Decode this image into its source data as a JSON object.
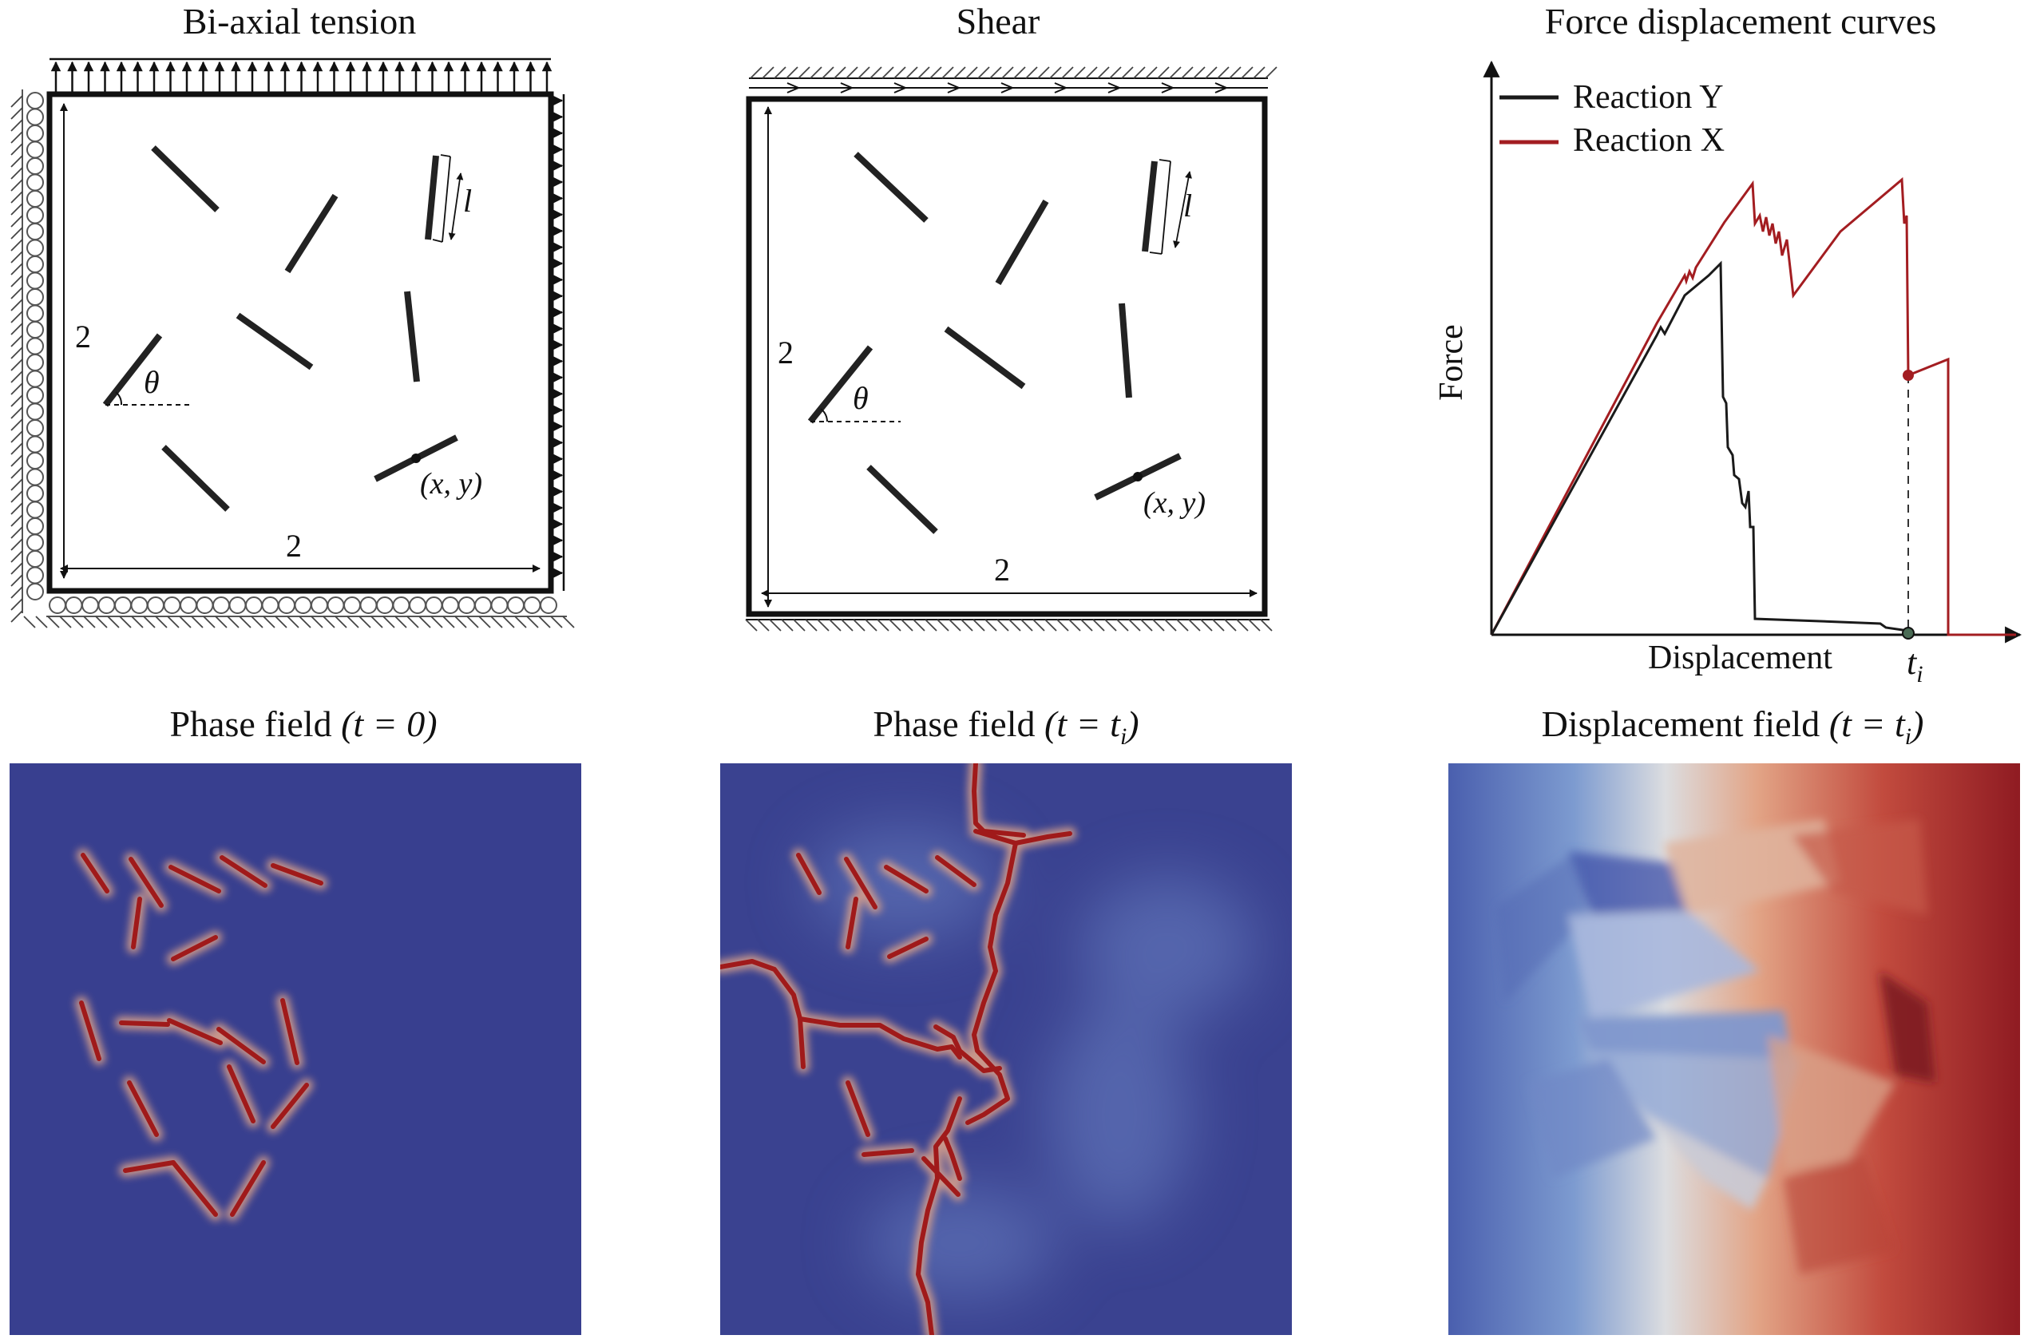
{
  "panels": {
    "biaxial": {
      "title": "Bi-axial tension",
      "dim_side": "2",
      "dim_bottom": "2",
      "angle_label": "θ",
      "length_label": "l",
      "coord_label": "(x, y)"
    },
    "shear": {
      "title": "Shear",
      "dim_side": "2",
      "dim_bottom": "2",
      "angle_label": "θ",
      "length_label": "l",
      "coord_label": "(x, y)"
    },
    "curves": {
      "title": "Force displacement curves",
      "ylabel": "Force",
      "xlabel": "Displacement",
      "marker_label": "t",
      "marker_sub": "i",
      "legend": [
        {
          "label": "Reaction Y",
          "color": "#1a1a1a"
        },
        {
          "label": "Reaction X",
          "color": "#a31d21"
        }
      ]
    },
    "phase0": {
      "title": "Phase field",
      "math": "(t = 0)"
    },
    "phaseti": {
      "title": "Phase field",
      "math_pre": "(t = t",
      "math_sub": "i",
      "math_post": ")"
    },
    "dispti": {
      "title": "Displacement field",
      "math_pre": "(t = t",
      "math_sub": "i",
      "math_post": ")"
    }
  },
  "colors": {
    "field_blue": "#383f8f",
    "crack_red": "#a01a1a",
    "reaction_y": "#1a1a1a",
    "reaction_x": "#a31d21"
  }
}
